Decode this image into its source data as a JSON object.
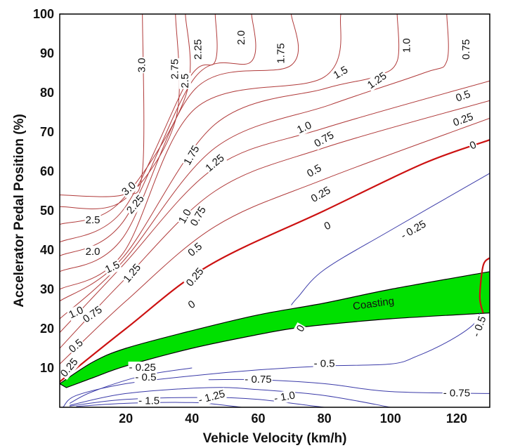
{
  "chart_data": {
    "type": "contour",
    "title": "",
    "xlabel": "Vehicle Velocity (km/h)",
    "ylabel": "Accelerator Pedal Position (%)",
    "xlim": [
      0,
      130
    ],
    "ylim": [
      0,
      100
    ],
    "x_ticks": [
      20,
      40,
      60,
      80,
      100,
      120
    ],
    "y_ticks": [
      10,
      20,
      30,
      40,
      50,
      60,
      70,
      80,
      90,
      100
    ],
    "grid": false,
    "colors": {
      "positive": "#b03a3a",
      "zero": "#cc1111",
      "negative": "#3a3aa8",
      "coasting_fill": "#00e000",
      "border": "#000000"
    },
    "region": {
      "label": "Coasting",
      "upper": [
        [
          0,
          6
        ],
        [
          10,
          11.5
        ],
        [
          20,
          15
        ],
        [
          40,
          19.5
        ],
        [
          60,
          23.5
        ],
        [
          80,
          26.5
        ],
        [
          100,
          30
        ],
        [
          130,
          34.5
        ]
      ],
      "lower": [
        [
          130,
          24
        ],
        [
          100,
          22.5
        ],
        [
          80,
          21
        ],
        [
          70,
          20
        ],
        [
          60,
          18.5
        ],
        [
          40,
          15
        ],
        [
          20,
          10.5
        ],
        [
          10,
          7.5
        ],
        [
          2,
          5
        ]
      ]
    },
    "contours": [
      {
        "level": "3.0",
        "points": [
          [
            0,
            54
          ],
          [
            19,
            54
          ],
          [
            25,
            60
          ],
          [
            25,
            100
          ]
        ]
      },
      {
        "level": "2.75",
        "points": [
          [
            0,
            51
          ],
          [
            19,
            52.5
          ],
          [
            35,
            73
          ],
          [
            35,
            100
          ]
        ]
      },
      {
        "level": "2.5",
        "points": [
          [
            0,
            46.5
          ],
          [
            18,
            52
          ],
          [
            38,
            79
          ],
          [
            38,
            100
          ]
        ]
      },
      {
        "level": "2.25",
        "points": [
          [
            0,
            42
          ],
          [
            19,
            50
          ],
          [
            39,
            83.5
          ],
          [
            47,
            88
          ],
          [
            47,
            100
          ]
        ]
      },
      {
        "level": "2.0",
        "points": [
          [
            0,
            38.5
          ],
          [
            19,
            47
          ],
          [
            41,
            84
          ],
          [
            58,
            88
          ],
          [
            58,
            100
          ]
        ]
      },
      {
        "level": "1.75",
        "points": [
          [
            0,
            34.5
          ],
          [
            19,
            43
          ],
          [
            41,
            81
          ],
          [
            70,
            87
          ],
          [
            70,
            100
          ]
        ]
      },
      {
        "level": "1.5",
        "points": [
          [
            0,
            30
          ],
          [
            19,
            39
          ],
          [
            41,
            76
          ],
          [
            80,
            84
          ],
          [
            85,
            100
          ]
        ]
      },
      {
        "level": "1.25",
        "points": [
          [
            0,
            27
          ],
          [
            19,
            38
          ],
          [
            47,
            72
          ],
          [
            80,
            81
          ],
          [
            95,
            84
          ],
          [
            102,
            88
          ],
          [
            102,
            100
          ]
        ]
      },
      {
        "level": "1.0",
        "points": [
          [
            0,
            22.5
          ],
          [
            19,
            37
          ],
          [
            47,
            66
          ],
          [
            82,
            77
          ],
          [
            110,
            85
          ],
          [
            117,
            88
          ],
          [
            117,
            100
          ]
        ]
      },
      {
        "level": "0.75",
        "points": [
          [
            0,
            19
          ],
          [
            19,
            36
          ],
          [
            47,
            61
          ],
          [
            80,
            71
          ],
          [
            130,
            83
          ]
        ]
      },
      {
        "level": "0.5",
        "points": [
          [
            0,
            15
          ],
          [
            19,
            32
          ],
          [
            47,
            55
          ],
          [
            80,
            66
          ],
          [
            130,
            78
          ]
        ]
      },
      {
        "level": "0.25",
        "points": [
          [
            0,
            11
          ],
          [
            20,
            27
          ],
          [
            47,
            46
          ],
          [
            80,
            58
          ],
          [
            130,
            73.5
          ]
        ]
      },
      {
        "level": "0",
        "points": [
          [
            0,
            6.5
          ],
          [
            20,
            20
          ],
          [
            45,
            36
          ],
          [
            80,
            50
          ],
          [
            110,
            62
          ],
          [
            130,
            68
          ]
        ]
      },
      {
        "level": "-0.25",
        "points": [
          [
            70,
            26
          ],
          [
            72,
            28
          ],
          [
            80,
            35
          ],
          [
            100,
            45
          ],
          [
            130,
            59.5
          ]
        ]
      },
      {
        "level": "0",
        "points": [
          [
            130,
            38
          ],
          [
            128,
            36
          ],
          [
            127,
            28
          ],
          [
            128,
            24
          ]
        ]
      },
      {
        "level": "-0.5",
        "points": [
          [
            127,
            24
          ],
          [
            125,
            21
          ],
          [
            118,
            17
          ],
          [
            108,
            13
          ],
          [
            100,
            11
          ],
          [
            80,
            10.5
          ],
          [
            60,
            9.5
          ],
          [
            40,
            8
          ],
          [
            20,
            6
          ],
          [
            5,
            3
          ],
          [
            1,
            0
          ]
        ]
      },
      {
        "level": "-0.25",
        "points": [
          [
            40,
            10
          ],
          [
            25,
            8
          ],
          [
            10,
            4
          ],
          [
            3,
            1
          ]
        ]
      },
      {
        "level": "-0.75",
        "points": [
          [
            45,
            7
          ],
          [
            60,
            7
          ],
          [
            80,
            6
          ],
          [
            100,
            4
          ],
          [
            130,
            3.5
          ]
        ]
      },
      {
        "level": "-1.0",
        "points": [
          [
            3,
            0.5
          ],
          [
            20,
            3.5
          ],
          [
            45,
            5
          ],
          [
            60,
            4.5
          ],
          [
            80,
            3
          ],
          [
            100,
            0
          ]
        ]
      },
      {
        "level": "-1.25",
        "points": [
          [
            3,
            0.3
          ],
          [
            20,
            2
          ],
          [
            45,
            2.5
          ],
          [
            60,
            2
          ],
          [
            75,
            0.5
          ],
          [
            80,
            0
          ]
        ]
      },
      {
        "level": "-1.5",
        "points": [
          [
            5,
            0.2
          ],
          [
            20,
            1
          ],
          [
            40,
            1.2
          ],
          [
            50,
            0.5
          ],
          [
            55,
            0
          ]
        ]
      }
    ],
    "labels": [
      {
        "text": "3.0",
        "x": 25,
        "y": 87,
        "angle": -90
      },
      {
        "text": "2.75",
        "x": 35,
        "y": 86,
        "angle": -90
      },
      {
        "text": "2.5",
        "x": 38,
        "y": 83,
        "angle": -90
      },
      {
        "text": "2.25",
        "x": 42,
        "y": 91,
        "angle": -90
      },
      {
        "text": "2.0",
        "x": 55,
        "y": 94,
        "angle": -90
      },
      {
        "text": "1.75",
        "x": 67,
        "y": 90,
        "angle": -90
      },
      {
        "text": "1.5",
        "x": 85,
        "y": 85,
        "angle": -30
      },
      {
        "text": "1.25",
        "x": 96,
        "y": 83,
        "angle": -35
      },
      {
        "text": "1.0",
        "x": 105,
        "y": 92,
        "angle": -90
      },
      {
        "text": "0.75",
        "x": 123,
        "y": 91,
        "angle": -90
      },
      {
        "text": "3.0",
        "x": 21,
        "y": 55.5,
        "angle": -42
      },
      {
        "text": "2.25",
        "x": 23,
        "y": 51.5,
        "angle": -50
      },
      {
        "text": "2.5",
        "x": 10,
        "y": 47.5,
        "angle": 0
      },
      {
        "text": "2.0",
        "x": 10,
        "y": 39.5,
        "angle": 0
      },
      {
        "text": "1.5",
        "x": 16,
        "y": 35.5,
        "angle": -25
      },
      {
        "text": "1.25",
        "x": 22,
        "y": 34,
        "angle": -50
      },
      {
        "text": "1.0",
        "x": 5,
        "y": 24,
        "angle": -25
      },
      {
        "text": "0.75",
        "x": 10,
        "y": 23.5,
        "angle": -35
      },
      {
        "text": "0.5",
        "x": 5,
        "y": 15.5,
        "angle": -40
      },
      {
        "text": "0.25",
        "x": 3,
        "y": 10,
        "angle": -50
      },
      {
        "text": "1.75",
        "x": 40,
        "y": 64,
        "angle": -60
      },
      {
        "text": "1.25",
        "x": 47,
        "y": 62,
        "angle": -40
      },
      {
        "text": "1.0",
        "x": 38,
        "y": 48.5,
        "angle": -60
      },
      {
        "text": "0.75",
        "x": 42,
        "y": 48.5,
        "angle": -60
      },
      {
        "text": "0.5",
        "x": 41,
        "y": 40,
        "angle": -40
      },
      {
        "text": "0.25",
        "x": 41,
        "y": 33,
        "angle": -50
      },
      {
        "text": "0",
        "x": 40,
        "y": 26,
        "angle": -35
      },
      {
        "text": "1.0",
        "x": 74,
        "y": 71,
        "angle": -25
      },
      {
        "text": "0.75",
        "x": 80,
        "y": 68,
        "angle": -30
      },
      {
        "text": "0.5",
        "x": 77,
        "y": 60,
        "angle": -30
      },
      {
        "text": "0.25",
        "x": 79,
        "y": 54,
        "angle": -30
      },
      {
        "text": "0",
        "x": 81,
        "y": 46,
        "angle": -25
      },
      {
        "text": "0.5",
        "x": 122,
        "y": 79,
        "angle": -20
      },
      {
        "text": "0.25",
        "x": 122,
        "y": 73,
        "angle": -20
      },
      {
        "text": "0",
        "x": 125,
        "y": 66.5,
        "angle": -25
      },
      {
        "text": "- 0.25",
        "x": 107,
        "y": 45,
        "angle": -30
      },
      {
        "text": "0",
        "x": 73,
        "y": 20,
        "angle": -60
      },
      {
        "text": "- 0.5",
        "x": 127,
        "y": 20.5,
        "angle": -70
      },
      {
        "text": "- 0.25",
        "x": 25,
        "y": 10,
        "angle": 0
      },
      {
        "text": "- 0.5",
        "x": 26,
        "y": 7.5,
        "angle": 0
      },
      {
        "text": "- 0.5",
        "x": 80,
        "y": 11,
        "angle": 0
      },
      {
        "text": "- 0.75",
        "x": 60,
        "y": 7,
        "angle": 0
      },
      {
        "text": "- 0.75",
        "x": 120,
        "y": 3.5,
        "angle": 0
      },
      {
        "text": "- 1.0",
        "x": 68,
        "y": 2.5,
        "angle": -10
      },
      {
        "text": "- 1.25",
        "x": 46,
        "y": 2.5,
        "angle": -15
      },
      {
        "text": "- 1.5",
        "x": 27,
        "y": 1.5,
        "angle": 0
      }
    ]
  }
}
